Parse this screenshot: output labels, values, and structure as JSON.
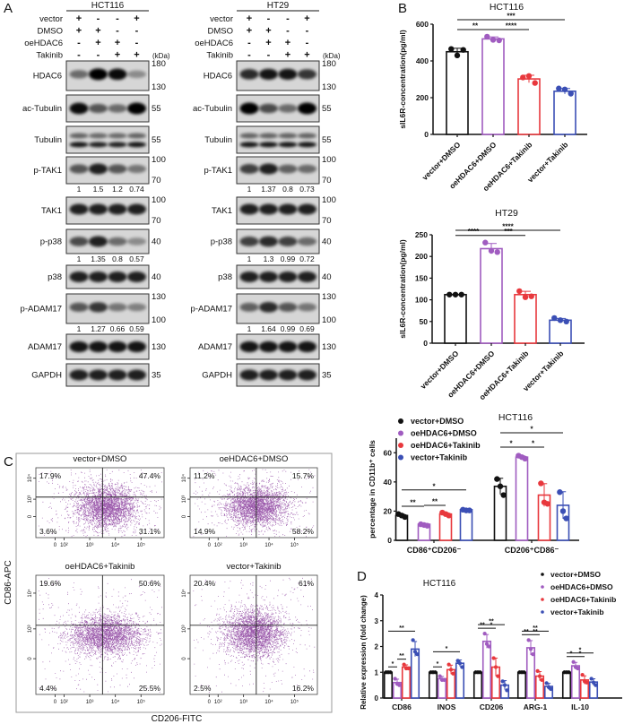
{
  "panel_labels": {
    "a": "A",
    "b": "B",
    "c": "C",
    "d": "D"
  },
  "colors": {
    "vector_dmso": "#111111",
    "oehdac6_dmso": "#a05cc0",
    "oehdac6_takinib": "#e8383d",
    "vector_takinib": "#3b4fb5",
    "flow_dots": "#8a3c9c"
  },
  "panel_a": {
    "cell_lines": [
      "HCT116",
      "HT29"
    ],
    "kda_unit": "(kDa)",
    "conditions": [
      {
        "label": "vector",
        "signs": [
          "+",
          "-",
          "-",
          "+"
        ]
      },
      {
        "label": "DMSO",
        "signs": [
          "+",
          "+",
          "-",
          "-"
        ]
      },
      {
        "label": "oeHDAC6",
        "signs": [
          "-",
          "+",
          "+",
          "-"
        ]
      },
      {
        "label": "Takinib",
        "signs": [
          "-",
          "-",
          "+",
          "+"
        ]
      }
    ],
    "proteins": [
      {
        "name": "HDAC6",
        "markers": [
          "180",
          "130"
        ]
      },
      {
        "name": "ac-Tubulin",
        "markers": [
          "55"
        ]
      },
      {
        "name": "Tubulin",
        "markers": [
          "55"
        ]
      },
      {
        "name": "p-TAK1",
        "markers": [
          "100",
          "70"
        ],
        "quant": [
          [
            "1",
            "1.5",
            "1.2",
            "0.74"
          ],
          [
            "1",
            "1.37",
            "0.8",
            "0.73"
          ]
        ]
      },
      {
        "name": "TAK1",
        "markers": [
          "100",
          "70"
        ]
      },
      {
        "name": "p-p38",
        "markers": [
          "40"
        ],
        "quant": [
          [
            "1",
            "1.35",
            "0.8",
            "0.57"
          ],
          [
            "1",
            "1.3",
            "0.99",
            "0.72"
          ]
        ]
      },
      {
        "name": "p38",
        "markers": [
          "40"
        ]
      },
      {
        "name": "p-ADAM17",
        "markers": [
          "130",
          "100"
        ],
        "quant": [
          [
            "1",
            "1.27",
            "0.66",
            "0.59"
          ],
          [
            "1",
            "1.64",
            "0.99",
            "0.69"
          ]
        ]
      },
      {
        "name": "ADAM17",
        "markers": [
          "130"
        ]
      },
      {
        "name": "GAPDH",
        "markers": [
          "35"
        ]
      }
    ]
  },
  "chart_data": [
    {
      "type": "bar",
      "title": "HCT116",
      "ylabel": "sIL6R-concentration(pg/ml)",
      "ylim": [
        0,
        600
      ],
      "yticks": [
        "0",
        "200",
        "400",
        "600"
      ],
      "categories": [
        "vector+DMSO",
        "oeHDAC6+DMSO",
        "oeHDAC6+Takinib",
        "vector+Takinib"
      ],
      "values": [
        450,
        520,
        302,
        235
      ],
      "points": [
        [
          465,
          430,
          460
        ],
        [
          532,
          515,
          512
        ],
        [
          310,
          318,
          280
        ],
        [
          250,
          245,
          222
        ]
      ],
      "significance": [
        {
          "from": 0,
          "to": 1,
          "label": "**"
        },
        {
          "from": 1,
          "to": 2,
          "label": "****"
        },
        {
          "from": 0,
          "to": 3,
          "label": "***"
        }
      ]
    },
    {
      "type": "bar",
      "title": "HT29",
      "ylabel": "sIL6R-concentration(pg/ml)",
      "ylim": [
        0,
        250
      ],
      "yticks": [
        "0",
        "50",
        "100",
        "150",
        "200",
        "250"
      ],
      "categories": [
        "vector+DMSO",
        "oeHDAC6+DMSO",
        "oeHDAC6+Takinib",
        "vector+Takinib"
      ],
      "values": [
        112,
        218,
        112,
        53
      ],
      "points": [
        [
          112,
          112,
          112
        ],
        [
          232,
          213,
          210
        ],
        [
          120,
          106,
          108
        ],
        [
          58,
          53,
          50
        ]
      ],
      "significance": [
        {
          "from": 0,
          "to": 1,
          "label": "****"
        },
        {
          "from": 1,
          "to": 2,
          "label": "***"
        },
        {
          "from": 0,
          "to": 3,
          "label": "****"
        }
      ]
    },
    {
      "type": "bar",
      "title": "HCT116",
      "ylabel": "percentage in CD11b⁺ cells",
      "ylim": [
        0,
        70
      ],
      "yticks": [
        "0",
        "20",
        "40",
        "60"
      ],
      "categories": [
        "CD86⁺CD206⁻",
        "CD206⁺CD86⁻"
      ],
      "legend": [
        "vector+DMSO",
        "oeHDAC6+DMSO",
        "oeHDAC6+Takinib",
        "vector+Takinib"
      ],
      "legend_position": "top-left",
      "series": [
        {
          "name": "vector+DMSO",
          "values": [
            17,
            37
          ],
          "points": [
            [
              18,
              17,
              16
            ],
            [
              42,
              37,
              31
            ]
          ]
        },
        {
          "name": "oeHDAC6+DMSO",
          "values": [
            11,
            57
          ],
          "points": [
            [
              11,
              10.5,
              10
            ],
            [
              58,
              57,
              56
            ]
          ]
        },
        {
          "name": "oeHDAC6+Takinib",
          "values": [
            18,
            31
          ],
          "points": [
            [
              19,
              18,
              17
            ],
            [
              39,
              26,
              25
            ]
          ]
        },
        {
          "name": "vector+Takinib",
          "values": [
            21,
            24
          ],
          "points": [
            [
              21,
              20.5,
              20.5
            ],
            [
              33,
              20,
              15
            ]
          ]
        }
      ],
      "significance": [
        [
          {
            "from": 0,
            "to": 1,
            "label": "**"
          },
          {
            "from": 1,
            "to": 2,
            "label": "**"
          },
          {
            "from": 0,
            "to": 3,
            "label": "*"
          }
        ],
        [
          {
            "from": 0,
            "to": 1,
            "label": "*"
          },
          {
            "from": 1,
            "to": 2,
            "label": "*"
          },
          {
            "from": 0,
            "to": 3,
            "label": "*"
          }
        ]
      ]
    },
    {
      "type": "bar",
      "title": "HCT116",
      "ylabel": "Relative expression (fold change)",
      "ylim": [
        0,
        4
      ],
      "yticks": [
        "0",
        "1",
        "2",
        "3",
        "4"
      ],
      "categories": [
        "CD86",
        "INOS",
        "CD206",
        "ARG-1",
        "IL-10"
      ],
      "legend": [
        "vector+DMSO",
        "oeHDAC6+DMSO",
        "oeHDAC6+Takinib",
        "vector+Takinib"
      ],
      "legend_position": "top-right",
      "series": [
        {
          "name": "vector+DMSO",
          "values": [
            1,
            1,
            1,
            1,
            1
          ],
          "points": [
            [
              1,
              1,
              1
            ],
            [
              1,
              1,
              1
            ],
            [
              1,
              1,
              1
            ],
            [
              1,
              1,
              1
            ],
            [
              1,
              1,
              1
            ]
          ]
        },
        {
          "name": "oeHDAC6+DMSO",
          "values": [
            0.6,
            0.75,
            2.2,
            1.95,
            1.25
          ],
          "points": [
            [
              0.75,
              0.55,
              0.5
            ],
            [
              0.85,
              0.7,
              0.7
            ],
            [
              2.5,
              2.1,
              2.0
            ],
            [
              2.25,
              1.9,
              1.7
            ],
            [
              1.4,
              1.2,
              1.15
            ]
          ]
        },
        {
          "name": "oeHDAC6+Takinib",
          "values": [
            1.2,
            1.1,
            1.2,
            0.85,
            0.7
          ],
          "points": [
            [
              1.3,
              1.15,
              1.15
            ],
            [
              1.3,
              1.1,
              0.95
            ],
            [
              1.55,
              1.2,
              0.85
            ],
            [
              1.05,
              0.85,
              0.7
            ],
            [
              0.9,
              0.65,
              0.6
            ]
          ]
        },
        {
          "name": "vector+Takinib",
          "values": [
            1.9,
            1.35,
            0.5,
            0.45,
            0.62
          ],
          "points": [
            [
              2.25,
              1.8,
              1.7
            ],
            [
              1.45,
              1.35,
              1.2
            ],
            [
              0.65,
              0.5,
              0.3
            ],
            [
              0.58,
              0.42,
              0.35
            ],
            [
              0.75,
              0.6,
              0.5
            ]
          ]
        }
      ],
      "significance": [
        [
          {
            "from": 0,
            "to": 1,
            "label": "*"
          },
          {
            "from": 1,
            "to": 2,
            "label": "**"
          },
          {
            "from": 0,
            "to": 3,
            "label": "**"
          }
        ],
        [
          {
            "from": 0,
            "to": 1,
            "label": "*"
          },
          {
            "from": 0,
            "to": 3,
            "label": "*"
          }
        ],
        [
          {
            "from": 0,
            "to": 1,
            "label": "**"
          },
          {
            "from": 1,
            "to": 2,
            "label": "*"
          },
          {
            "from": 0,
            "to": 3,
            "label": "**"
          }
        ],
        [
          {
            "from": 0,
            "to": 1,
            "label": "**"
          },
          {
            "from": 1,
            "to": 2,
            "label": "**"
          },
          {
            "from": 0,
            "to": 3,
            "label": "**"
          }
        ],
        [
          {
            "from": 0,
            "to": 1,
            "label": "*"
          },
          {
            "from": 1,
            "to": 2,
            "label": "*"
          },
          {
            "from": 0,
            "to": 3,
            "label": "*"
          }
        ]
      ]
    }
  ],
  "panel_c_flow": {
    "xlabel": "CD206-FITC",
    "ylabel": "CD86-APC",
    "x_ticks": [
      "0",
      "10²",
      "10³",
      "10⁴",
      "10⁵"
    ],
    "y_ticks": [
      "0",
      "10³",
      "10⁴"
    ],
    "plots": [
      {
        "title": "vector+DMSO",
        "quadrants": {
          "ul": "17.9%",
          "ur": "47.4%",
          "ll": "3.6%",
          "lr": "31.1%"
        }
      },
      {
        "title": "oeHDAC6+DMSO",
        "quadrants": {
          "ul": "11.2%",
          "ur": "15.7%",
          "ll": "14.9%",
          "lr": "58.2%"
        }
      },
      {
        "title": "oeHDAC6+Takinib",
        "quadrants": {
          "ul": "19.6%",
          "ur": "50.6%",
          "ll": "4.4%",
          "lr": "25.5%"
        }
      },
      {
        "title": "vector+Takinib",
        "quadrants": {
          "ul": "20.4%",
          "ur": "61%",
          "ll": "2.5%",
          "lr": "16.2%"
        }
      }
    ]
  }
}
